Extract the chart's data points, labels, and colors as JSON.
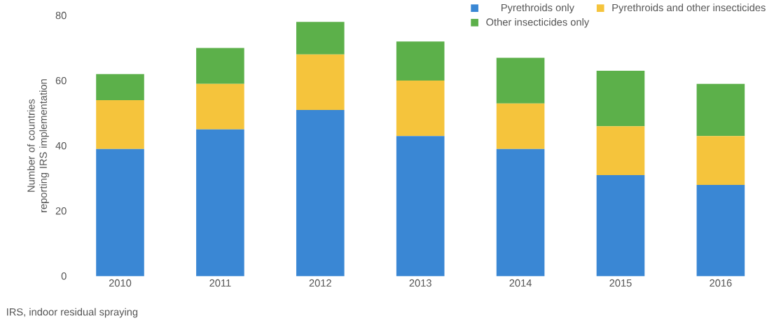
{
  "chart_data": {
    "type": "bar",
    "stacked": true,
    "ylabel": "Number of countries reporting IRS implementation",
    "categories": [
      "2010",
      "2011",
      "2012",
      "2013",
      "2014",
      "2015",
      "2016"
    ],
    "series": [
      {
        "name": "Pyrethroids only",
        "color": "#3a87d4",
        "values": [
          39,
          45,
          51,
          43,
          39,
          31,
          28
        ]
      },
      {
        "name": "Pyrethroids and other insecticides",
        "color": "#f5c43c",
        "values": [
          15,
          14,
          17,
          17,
          14,
          15,
          15
        ]
      },
      {
        "name": "Other insecticides only",
        "color": "#5cb04a",
        "values": [
          8,
          11,
          10,
          12,
          14,
          17,
          16
        ]
      }
    ],
    "ylim": [
      0,
      80
    ],
    "yticks": [
      0,
      20,
      40,
      60,
      80
    ],
    "legend": "top right",
    "annotations": [
      "IRS, indoor residual spraying"
    ]
  }
}
